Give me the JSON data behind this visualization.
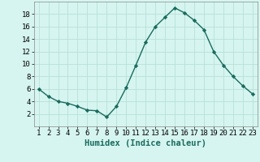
{
  "x": [
    1,
    2,
    3,
    4,
    5,
    6,
    7,
    8,
    9,
    10,
    11,
    12,
    13,
    14,
    15,
    16,
    17,
    18,
    19,
    20,
    21,
    22,
    23
  ],
  "y": [
    6,
    4.8,
    4,
    3.7,
    3.2,
    2.6,
    2.5,
    1.5,
    3.2,
    6.2,
    9.8,
    13.5,
    16,
    17.5,
    19,
    18.2,
    17,
    15.5,
    12,
    9.8,
    8,
    6.5,
    5.2
  ],
  "line_color": "#1a6b5e",
  "marker": "D",
  "marker_size": 2.2,
  "bg_color": "#d6f5f0",
  "grid_color": "#b8e0d8",
  "xlabel": "Humidex (Indice chaleur)",
  "xlim": [
    0.5,
    23.5
  ],
  "ylim": [
    0,
    20
  ],
  "yticks": [
    2,
    4,
    6,
    8,
    10,
    12,
    14,
    16,
    18
  ],
  "xticks": [
    1,
    2,
    3,
    4,
    5,
    6,
    7,
    8,
    9,
    10,
    11,
    12,
    13,
    14,
    15,
    16,
    17,
    18,
    19,
    20,
    21,
    22,
    23
  ],
  "xlabel_fontsize": 7.5,
  "tick_fontsize": 6.5,
  "linewidth": 1.0
}
